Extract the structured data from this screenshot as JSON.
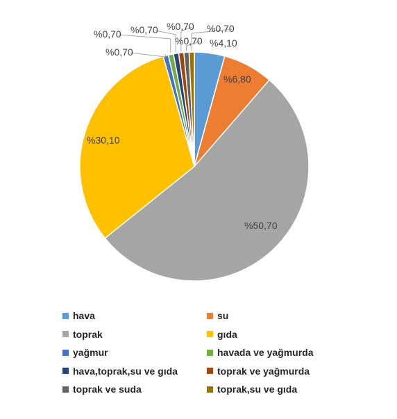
{
  "chart_data": {
    "type": "pie",
    "legend_position": "bottom",
    "categories": [
      "hava",
      "su",
      "toprak",
      "gıda",
      "yağmur",
      "havada ve yağmurda",
      "hava,toprak,su ve gıda",
      "toprak ve yağmurda",
      "toprak ve suda",
      "toprak,su ve gıda"
    ],
    "values": [
      4.1,
      6.8,
      50.7,
      30.1,
      0.7,
      0.7,
      0.7,
      0.7,
      0.7,
      0.7
    ],
    "labels": [
      "%4,10",
      "%6,80",
      "%50,70",
      "%30,10",
      "%0,70",
      "%0,70",
      "%0,70",
      "%0,70",
      "%0,70",
      "%0,70"
    ],
    "colors": [
      "#5b9bd5",
      "#ed7d31",
      "#a5a5a5",
      "#ffc000",
      "#4472c4",
      "#70ad47",
      "#264478",
      "#9e480e",
      "#636363",
      "#997300"
    ]
  }
}
